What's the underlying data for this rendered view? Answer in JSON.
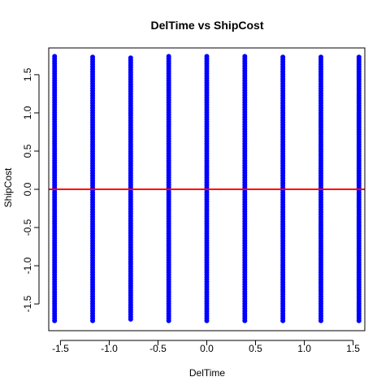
{
  "chart_data": {
    "type": "scatter",
    "title": "DelTime vs ShipCost",
    "xlabel": "DelTime",
    "ylabel": "ShipCost",
    "xlim": [
      -1.62,
      1.62
    ],
    "ylim": [
      -1.85,
      1.85
    ],
    "x_ticks": [
      -1.5,
      -1.0,
      -0.5,
      0.0,
      0.5,
      1.0,
      1.5
    ],
    "x_tick_labels": [
      "-1.5",
      "-1.0",
      "-0.5",
      "0.0",
      "0.5",
      "1.0",
      "1.5"
    ],
    "y_ticks": [
      -1.5,
      -1.0,
      -0.5,
      0.0,
      0.5,
      1.0,
      1.5
    ],
    "y_tick_labels": [
      "-1.5",
      "-1.0",
      "-0.5",
      "0.0",
      "0.5",
      "1.0",
      "1.5"
    ],
    "series": [
      {
        "point_color": "#0000ff",
        "x_levels": [
          -1.56,
          -1.17,
          -0.78,
          -0.39,
          0.0,
          0.39,
          0.78,
          1.17,
          1.56
        ],
        "y_min": [
          -1.72,
          -1.72,
          -1.7,
          -1.72,
          -1.72,
          -1.72,
          -1.72,
          -1.72,
          -1.72
        ],
        "y_max": [
          1.74,
          1.73,
          1.72,
          1.74,
          1.74,
          1.74,
          1.73,
          1.73,
          1.73
        ]
      }
    ],
    "reference_line": {
      "y": 0.0,
      "color": "#ff0000"
    },
    "grid": false,
    "legend": "none"
  }
}
